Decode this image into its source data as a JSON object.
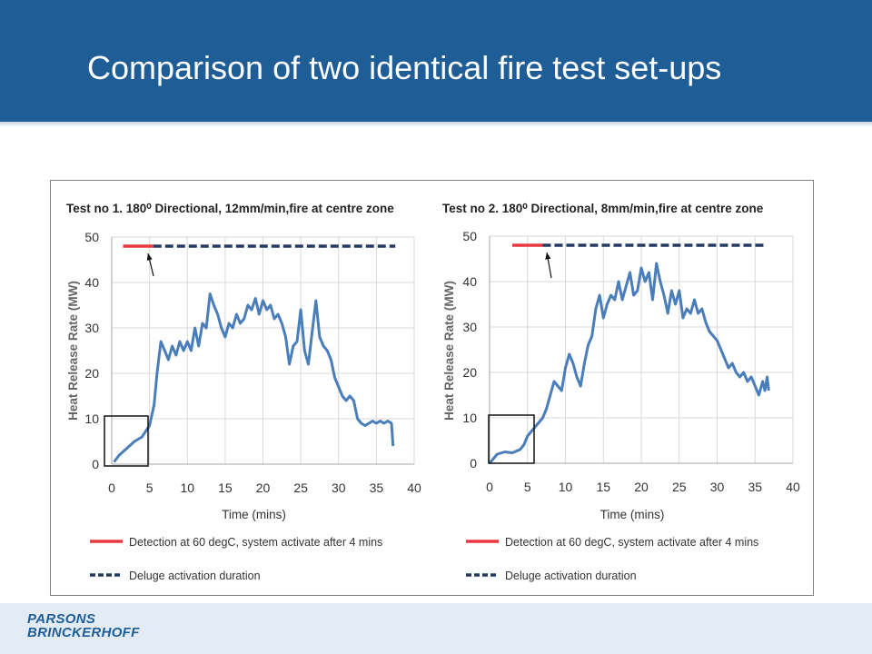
{
  "slide": {
    "title": "Comparison of two identical fire test set-ups",
    "logo": {
      "line1": "PARSONS",
      "line2": "BRINCKERHOFF"
    }
  },
  "colors": {
    "header": "#1f5d96",
    "footer": "#e3ecf5",
    "hrr_line": "#4a7ebb",
    "detection": "#e8393f",
    "deluge": "#243a63"
  },
  "chart_data": [
    {
      "type": "line",
      "title": "Test no 1. 180⁰ Directional, 12mm/min,fire at centre zone",
      "xlabel": "Time (mins)",
      "ylabel": "Heat Release Rate (MW)",
      "xlim": [
        0,
        40
      ],
      "ylim": [
        0,
        50
      ],
      "xticks": [
        0,
        5,
        10,
        15,
        20,
        25,
        30,
        35,
        40
      ],
      "yticks": [
        0,
        10,
        20,
        30,
        40,
        50
      ],
      "grid": true,
      "legend_placement": "bottom",
      "series": [
        {
          "name": "",
          "x": [
            0.3,
            1,
            2,
            3,
            4,
            5,
            5.6,
            6,
            6.5,
            7,
            7.5,
            8,
            8.5,
            9,
            9.5,
            10,
            10.5,
            11,
            11.5,
            12,
            12.5,
            13,
            13.5,
            14,
            14.5,
            15,
            15.5,
            16,
            16.5,
            17,
            17.5,
            18,
            18.5,
            19,
            19.5,
            20,
            20.5,
            21,
            21.5,
            22,
            22.5,
            23,
            23.5,
            24,
            24.5,
            25,
            25.5,
            26,
            26.5,
            27,
            27.5,
            28,
            28.5,
            29,
            29.5,
            30,
            30.5,
            31,
            31.5,
            32,
            32.5,
            33,
            33.5,
            34,
            34.5,
            35,
            35.5,
            36,
            36.5,
            37,
            37.2
          ],
          "y": [
            0.5,
            2,
            3.5,
            5,
            6,
            8.5,
            13,
            20,
            27,
            25,
            23,
            26,
            24,
            27,
            25,
            27,
            25,
            30,
            26,
            31,
            30,
            37.5,
            35,
            33,
            30,
            28,
            31,
            30,
            33,
            31,
            32,
            35,
            34,
            36.5,
            33,
            36,
            34,
            35,
            32,
            33,
            31,
            28,
            22,
            26,
            27,
            34,
            25,
            22,
            29,
            36,
            28,
            26,
            25,
            23,
            19,
            17,
            15,
            14,
            15,
            14,
            10,
            9,
            8.5,
            9,
            9.5,
            9,
            9.5,
            9,
            9.5,
            9,
            4
          ]
        },
        {
          "name": "Detection at 60 degC, system activate after 4 mins",
          "x": [
            1.5,
            5.5
          ],
          "y": [
            48,
            48
          ]
        },
        {
          "name": "Deluge activation duration",
          "x": [
            5.5,
            37.5
          ],
          "y": [
            48,
            48
          ]
        }
      ]
    },
    {
      "type": "line",
      "title": "Test no 2. 180⁰ Directional, 8mm/min,fire at centre zone",
      "xlabel": "Time (mins)",
      "ylabel": "Heat Release Rate (MW)",
      "xlim": [
        0,
        40
      ],
      "ylim": [
        0,
        50
      ],
      "xticks": [
        0,
        5,
        10,
        15,
        20,
        25,
        30,
        35,
        40
      ],
      "yticks": [
        0,
        10,
        20,
        30,
        40,
        50
      ],
      "grid": true,
      "legend_placement": "bottom",
      "series": [
        {
          "name": "",
          "x": [
            0,
            0.5,
            1,
            2,
            3,
            4,
            4.5,
            5,
            6,
            7,
            7.5,
            8,
            8.5,
            9,
            9.5,
            10,
            10.5,
            11,
            11.5,
            12,
            12.5,
            13,
            13.5,
            14,
            14.5,
            15,
            15.5,
            16,
            16.5,
            17,
            17.5,
            18,
            18.5,
            19,
            19.5,
            20,
            20.5,
            21,
            21.5,
            22,
            22.5,
            23,
            23.5,
            24,
            24.5,
            25,
            25.5,
            26,
            26.5,
            27,
            27.5,
            28,
            28.5,
            29,
            29.5,
            30,
            30.5,
            31,
            31.5,
            32,
            32.5,
            33,
            33.5,
            34,
            34.5,
            35,
            35.5,
            36,
            36.3,
            36.6,
            36.8
          ],
          "y": [
            0,
            1,
            2,
            2.5,
            2.3,
            3,
            4,
            6,
            8,
            10,
            12,
            15,
            18,
            17,
            16,
            21,
            24,
            22,
            19,
            17,
            22,
            26,
            28,
            34,
            37,
            32,
            35,
            37,
            36,
            40,
            36,
            39,
            42,
            37,
            38,
            43,
            40,
            42,
            36,
            44,
            40,
            37,
            33,
            38,
            35,
            38,
            32,
            34,
            33,
            36,
            33,
            34,
            31,
            29,
            28,
            27,
            25,
            23,
            21,
            22,
            20,
            19,
            20,
            18,
            19,
            17,
            15,
            18,
            16,
            19,
            16
          ]
        },
        {
          "name": "Detection at 60 degC, system activate after 4 mins",
          "x": [
            3,
            7
          ],
          "y": [
            48,
            48
          ]
        },
        {
          "name": "Deluge activation duration",
          "x": [
            7,
            36.5
          ],
          "y": [
            48,
            48
          ]
        }
      ]
    }
  ]
}
